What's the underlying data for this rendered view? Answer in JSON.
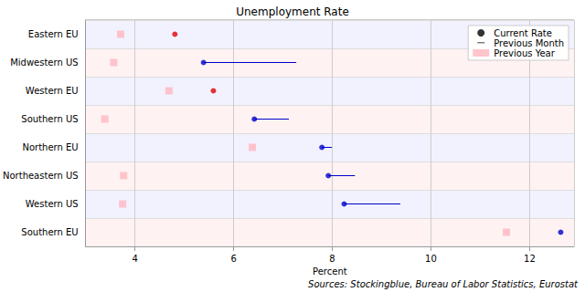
{
  "chart_data": {
    "type": "dot",
    "title": "Unemployment Rate",
    "x_label": "Percent",
    "source": "Sources: Stockingblue, Bureau of Labor Statistics, Eurostat",
    "orientation": "horizontal",
    "categories": [
      "Eastern EU",
      "Midwestern US",
      "Western EU",
      "Southern US",
      "Northern EU",
      "Northeastern US",
      "Western US",
      "Southern EU"
    ],
    "series": [
      {
        "name": "Current Rate",
        "type": "scatter",
        "marker": "circle",
        "color": "#000000",
        "colors": [
          "#e00000",
          "#0000cc",
          "#e00000",
          "#0000cc",
          "#0000cc",
          "#0000cc",
          "#0000cc",
          "#0000cc"
        ],
        "values": [
          4.81,
          5.39,
          5.59,
          6.42,
          7.79,
          7.92,
          8.24,
          12.63
        ]
      },
      {
        "name": "Previous Month",
        "type": "line",
        "line_style": "solid",
        "color": "#0000cc",
        "values": [
          null,
          7.27,
          null,
          7.12,
          7.99,
          8.46,
          9.38,
          null
        ]
      },
      {
        "name": "Previous Year",
        "type": "scatter",
        "marker": "square",
        "color": "#ffb6c1",
        "values": [
          3.71,
          3.57,
          4.69,
          3.39,
          6.38,
          3.77,
          3.75,
          11.53
        ]
      }
    ],
    "xlim": [
      3.0,
      12.9
    ],
    "xticks": [
      4,
      6,
      8,
      10,
      12
    ],
    "grid": true,
    "legend": "upper right"
  }
}
